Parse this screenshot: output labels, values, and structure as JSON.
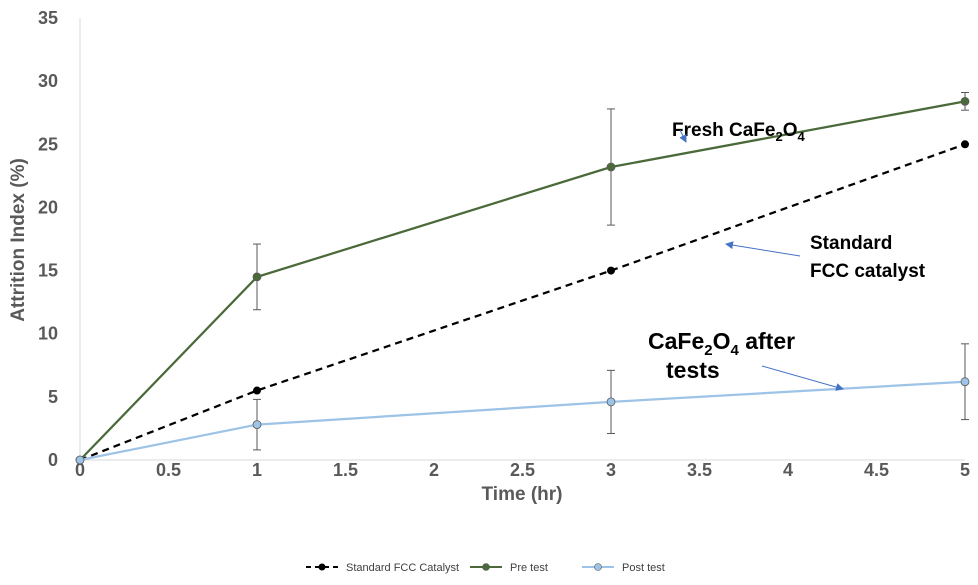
{
  "chart_data": {
    "type": "line",
    "xlabel": "Time (hr)",
    "ylabel": "Attrition Index (%)",
    "xlim": [
      0,
      5
    ],
    "ylim": [
      0,
      35
    ],
    "xticks": [
      "0",
      "0.5",
      "1",
      "1.5",
      "2",
      "2.5",
      "3",
      "3.5",
      "4",
      "4.5",
      "5"
    ],
    "yticks": [
      "0",
      "5",
      "10",
      "15",
      "20",
      "25",
      "30",
      "35"
    ],
    "grid": false,
    "series": [
      {
        "name": "Standard FCC Catalyst",
        "color": "#000000",
        "style": "dashed",
        "x": [
          0,
          1,
          3,
          5
        ],
        "y": [
          0,
          5.5,
          15,
          25
        ]
      },
      {
        "name": "Pre test",
        "color": "#4a6a3a",
        "style": "solid",
        "x": [
          0,
          1,
          3,
          5
        ],
        "y": [
          0,
          14.5,
          23.2,
          28.4
        ],
        "err": [
          0,
          2.6,
          4.6,
          0.7
        ]
      },
      {
        "name": "Post test",
        "color": "#9dc3e6",
        "style": "solid",
        "x": [
          0,
          1,
          3,
          5
        ],
        "y": [
          0,
          2.8,
          4.6,
          6.2
        ],
        "err": [
          0,
          2.0,
          2.5,
          3.0
        ]
      }
    ],
    "annotations": [
      {
        "pre": "Fresh CaFe",
        "sub1": "2",
        "mid": "O",
        "sub2": "4",
        "post": ""
      },
      {
        "line1": "Standard",
        "line2": "FCC catalyst"
      },
      {
        "pre": "CaFe",
        "sub1": "2",
        "mid": "O",
        "sub2": "4",
        "post": " after",
        "line2": "tests"
      }
    ],
    "legend_position": "bottom"
  }
}
